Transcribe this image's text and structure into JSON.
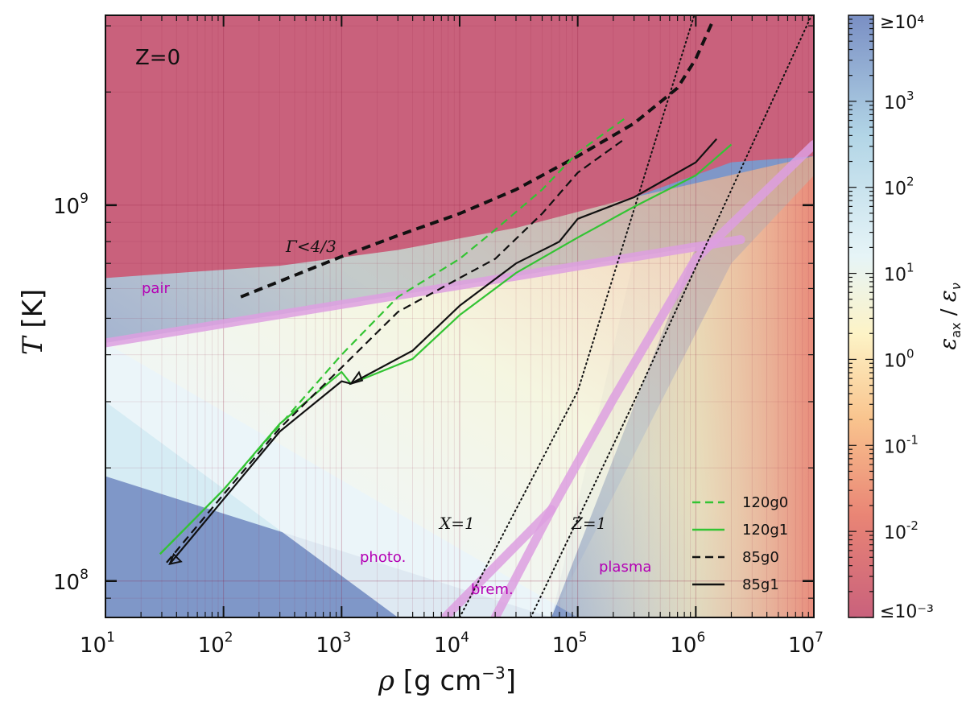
{
  "chart_data": {
    "type": "line",
    "title": "",
    "panel_label": "Z=0",
    "xlabel": "ρ [g cm⁻³]",
    "ylabel": "T [K]",
    "xscale": "log",
    "yscale": "log",
    "xlim": [
      10,
      10000000
    ],
    "ylim": [
      80000000,
      3200000000
    ],
    "x_ticks": [
      {
        "base": "10",
        "exp": "1"
      },
      {
        "base": "10",
        "exp": "2"
      },
      {
        "base": "10",
        "exp": "3"
      },
      {
        "base": "10",
        "exp": "4"
      },
      {
        "base": "10",
        "exp": "5"
      },
      {
        "base": "10",
        "exp": "6"
      },
      {
        "base": "10",
        "exp": "7"
      }
    ],
    "y_ticks": [
      {
        "base": "10",
        "exp": "8",
        "value": 100000000
      },
      {
        "base": "10",
        "exp": "9",
        "value": 1000000000
      }
    ],
    "colorbar": {
      "label": "ε_ax / ε_ν",
      "min_label": "≤10⁻³",
      "max_label": "≥10⁴",
      "range_log10": [
        -3,
        4
      ],
      "ticks": [
        {
          "base": "10",
          "exp": "3",
          "log": 3
        },
        {
          "base": "10",
          "exp": "2",
          "log": 2
        },
        {
          "base": "10",
          "exp": "1",
          "log": 1
        },
        {
          "base": "10",
          "exp": "0",
          "log": 0
        },
        {
          "base": "10",
          "exp": "-1",
          "log": -1
        },
        {
          "base": "10",
          "exp": "-2",
          "log": -2
        }
      ],
      "colors": [
        "#c9617c",
        "#e98575",
        "#f9c48e",
        "#fdf3c6",
        "#e6f4f7",
        "#b2d5e6",
        "#7a8fc4"
      ]
    },
    "background_series": [
      {
        "name": "pair",
        "style": "thick-pink",
        "x": [
          10,
          2400000
        ],
        "y": [
          430000000,
          810000000
        ]
      },
      {
        "name": "plasma",
        "style": "thick-pink",
        "x": [
          7500,
          60000,
          200000,
          1000000,
          10000000
        ],
        "y": [
          80000000,
          155000000,
          305000000,
          720000000,
          1450000000
        ]
      },
      {
        "name": "brem.",
        "style": "thick-pink",
        "x": [
          20000,
          60000
        ],
        "y": [
          80000000,
          155000000
        ]
      },
      {
        "name": "Γ<4/3",
        "style": "thick-dashed",
        "x": [
          140,
          1000,
          3000,
          10000,
          30000,
          100000,
          300000,
          700000,
          1000000,
          1400000
        ],
        "y": [
          570000000,
          730000000,
          830000000,
          950000000,
          1100000000,
          1350000000,
          1650000000,
          2050000000,
          2450000000,
          3100000000
        ]
      },
      {
        "name": "X=1",
        "style": "dotted",
        "x": [
          10000,
          100000,
          1000000
        ],
        "y": [
          80000000,
          320000000,
          3300000000
        ]
      },
      {
        "name": "Z=1",
        "style": "dotted",
        "x": [
          40000,
          300000,
          10000000
        ],
        "y": [
          80000000,
          300000000,
          3300000000
        ]
      }
    ],
    "series": [
      {
        "name": "120g0",
        "color": "#33c433",
        "dash": "dashed",
        "x": [
          29,
          100,
          300,
          1000,
          3000,
          10000,
          20000,
          50000,
          100000,
          250000
        ],
        "y": [
          118000000,
          175000000,
          260000000,
          400000000,
          570000000,
          720000000,
          860000000,
          1100000000,
          1380000000,
          1700000000
        ]
      },
      {
        "name": "120g1",
        "color": "#33c433",
        "dash": "solid",
        "x": [
          29,
          100,
          300,
          1000,
          1200,
          4000,
          10000,
          30000,
          100000,
          300000,
          1000000,
          2000000
        ],
        "y": [
          118000000,
          175000000,
          262000000,
          360000000,
          335000000,
          390000000,
          510000000,
          660000000,
          820000000,
          990000000,
          1200000000,
          1450000000
        ]
      },
      {
        "name": "85g0",
        "color": "#111111",
        "dash": "dashed",
        "x": [
          33,
          100,
          300,
          1000,
          3000,
          10000,
          20000,
          50000,
          100000,
          250000
        ],
        "y": [
          112000000,
          170000000,
          255000000,
          370000000,
          520000000,
          640000000,
          720000000,
          950000000,
          1220000000,
          1500000000
        ]
      },
      {
        "name": "85g1",
        "color": "#111111",
        "dash": "solid",
        "x": [
          35,
          100,
          300,
          1000,
          1200,
          4000,
          10000,
          30000,
          60000,
          70000,
          100000,
          300000,
          1000000,
          1500000
        ],
        "y": [
          111000000,
          165000000,
          250000000,
          340000000,
          335000000,
          410000000,
          540000000,
          700000000,
          780000000,
          800000000,
          920000000,
          1050000000,
          1300000000,
          1500000000
        ]
      }
    ],
    "annotations": {
      "pair": "pair",
      "gamma": "Γ<4/3",
      "photo": "photo.",
      "brem": "brem.",
      "plasma": "plasma",
      "x1": "X=1",
      "z1": "Z=1"
    },
    "legend": {
      "position": "lower right",
      "entries": [
        "120g0",
        "120g1",
        "85g0",
        "85g1"
      ]
    }
  }
}
